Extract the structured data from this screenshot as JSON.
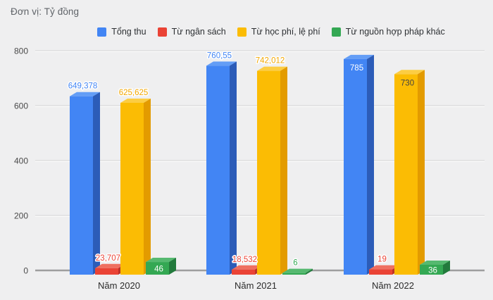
{
  "chart_data": {
    "type": "bar",
    "style": "3d-column",
    "unit_label": "Đơn vị: Tỷ đồng",
    "categories": [
      "Năm 2020",
      "Năm 2021",
      "Năm 2022"
    ],
    "category_slugs": [
      "nam-2020",
      "nam-2021",
      "nam-2022"
    ],
    "y_ticks": [
      0,
      200,
      400,
      600,
      800
    ],
    "ylim": [
      0,
      800
    ],
    "grid": true,
    "legend_position": "top",
    "background_color": "#efeff0",
    "axis_color": "#9e9e9e",
    "gridline_color": "#d8d8d8",
    "tick_label_color": "#4a4a4a",
    "category_label_color": "#2b2b2b",
    "series": [
      {
        "name": "Tổng thu",
        "slug": "tong-thu",
        "colors": {
          "front": "#4285f4",
          "top": "#639df6",
          "side": "#2c5cb8"
        },
        "values": [
          649.378,
          760.55,
          785
        ],
        "data_labels": [
          {
            "text": "649,378",
            "placement": "above",
            "color": "#4285f4"
          },
          {
            "text": "760,55",
            "placement": "above",
            "color": "#4285f4"
          },
          {
            "text": "785",
            "placement": "inside-top",
            "color": "#ffffff"
          }
        ]
      },
      {
        "name": "Từ ngân sách",
        "slug": "tu-ngan-sach",
        "colors": {
          "front": "#ea4335",
          "top": "#ef6f60",
          "side": "#bc3327"
        },
        "values": [
          23.707,
          18.532,
          19
        ],
        "data_labels": [
          {
            "text": "23,707",
            "placement": "above",
            "color": "#ea4335"
          },
          {
            "text": "18,532",
            "placement": "above",
            "color": "#ea4335"
          },
          {
            "text": "19",
            "placement": "above",
            "color": "#ea4335"
          }
        ]
      },
      {
        "name": "Từ học phí, lệ phí",
        "slug": "tu-hoc-phi-le-phi",
        "colors": {
          "front": "#fbbc04",
          "top": "#fccd43",
          "side": "#e39b00"
        },
        "values": [
          625.625,
          742.012,
          730
        ],
        "data_labels": [
          {
            "text": "625,625",
            "placement": "above",
            "color": "#f2a600"
          },
          {
            "text": "742,012",
            "placement": "above",
            "color": "#f2a600"
          },
          {
            "text": "730",
            "placement": "inside-top",
            "color": "#424242"
          }
        ]
      },
      {
        "name": "Từ nguồn hợp pháp khác",
        "slug": "tu-nguon-hop-phap-khac",
        "colors": {
          "front": "#34a853",
          "top": "#56b970",
          "side": "#227a3c"
        },
        "values": [
          46,
          6,
          36
        ],
        "data_labels": [
          {
            "text": "46",
            "placement": "inside-mid",
            "color": "#ffffff"
          },
          {
            "text": "6",
            "placement": "above",
            "color": "#34a853"
          },
          {
            "text": "36",
            "placement": "inside-mid",
            "color": "#ffffff"
          }
        ]
      }
    ]
  }
}
